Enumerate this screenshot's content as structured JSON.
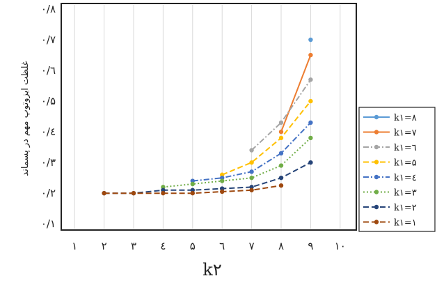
{
  "chart_data": {
    "type": "line",
    "title": "",
    "xlabel": "k۲",
    "ylabel": "غلظت ایزوتوپ مهم در پسماند",
    "xlim": [
      1,
      10
    ],
    "ylim": [
      0.1,
      0.8
    ],
    "x_ticks": [
      1,
      2,
      3,
      4,
      5,
      6,
      7,
      8,
      9,
      10
    ],
    "x_tick_labels": [
      "۱",
      "۲",
      "۳",
      "٤",
      "۵",
      "٦",
      "۷",
      "۸",
      "۹",
      "۱۰"
    ],
    "y_ticks": [
      0.1,
      0.2,
      0.3,
      0.4,
      0.5,
      0.6,
      0.7,
      0.8
    ],
    "y_tick_labels": [
      "۰/۱",
      "۰/۲",
      "۰/۳",
      "۰/٤",
      "۰/۵",
      "۰/٦",
      "۰/۷",
      "۰/۸"
    ],
    "grid": "vertical",
    "legend_position": "right",
    "series": [
      {
        "name": "k۱=۸",
        "color": "#5B9BD5",
        "dash": "solid",
        "points": [
          [
            9,
            0.7
          ]
        ]
      },
      {
        "name": "k۱=۷",
        "color": "#ED7D31",
        "dash": "solid",
        "points": [
          [
            8,
            0.4
          ],
          [
            9,
            0.65
          ]
        ]
      },
      {
        "name": "k۱=٦",
        "color": "#A5A5A5",
        "dash": "dashdot",
        "points": [
          [
            7,
            0.34
          ],
          [
            8,
            0.43
          ],
          [
            9,
            0.57
          ]
        ]
      },
      {
        "name": "k۱=۵",
        "color": "#FFC000",
        "dash": "dash",
        "points": [
          [
            6,
            0.26
          ],
          [
            7,
            0.3
          ],
          [
            8,
            0.38
          ],
          [
            9,
            0.5
          ]
        ]
      },
      {
        "name": "k۱=٤",
        "color": "#4472C4",
        "dash": "dashdot",
        "points": [
          [
            5,
            0.24
          ],
          [
            6,
            0.25
          ],
          [
            7,
            0.27
          ],
          [
            8,
            0.33
          ],
          [
            9,
            0.43
          ]
        ]
      },
      {
        "name": "k۱=۳",
        "color": "#70AD47",
        "dash": "dot",
        "points": [
          [
            4,
            0.22
          ],
          [
            5,
            0.23
          ],
          [
            6,
            0.24
          ],
          [
            7,
            0.25
          ],
          [
            8,
            0.29
          ],
          [
            9,
            0.38
          ]
        ]
      },
      {
        "name": "k۱=۲",
        "color": "#264478",
        "dash": "dash",
        "points": [
          [
            2,
            0.2
          ],
          [
            3,
            0.2
          ],
          [
            4,
            0.21
          ],
          [
            5,
            0.21
          ],
          [
            6,
            0.215
          ],
          [
            7,
            0.22
          ],
          [
            8,
            0.25
          ],
          [
            9,
            0.3
          ]
        ]
      },
      {
        "name": "k۱=۱",
        "color": "#9E480E",
        "dash": "dash",
        "points": [
          [
            2,
            0.2
          ],
          [
            3,
            0.2
          ],
          [
            4,
            0.2
          ],
          [
            5,
            0.2
          ],
          [
            6,
            0.205
          ],
          [
            7,
            0.21
          ],
          [
            8,
            0.225
          ]
        ]
      }
    ]
  }
}
